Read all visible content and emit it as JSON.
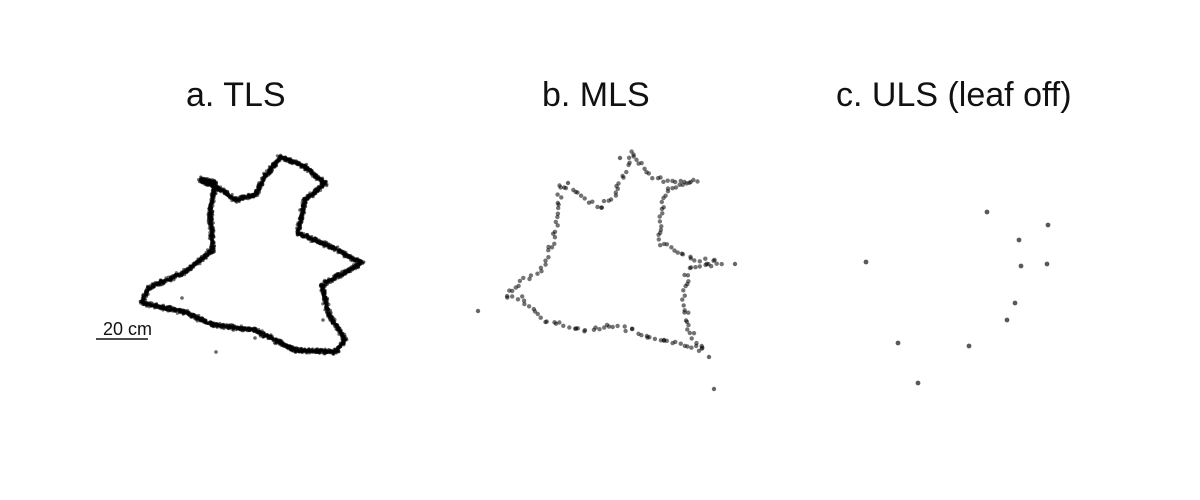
{
  "panels": [
    {
      "id": "a",
      "title": "a. TLS"
    },
    {
      "id": "b",
      "title": "b. MLS"
    },
    {
      "id": "c",
      "title": "c. ULS (leaf off)"
    }
  ],
  "scale_bar": {
    "label": "20 cm"
  },
  "colors": {
    "point": "#000000",
    "text": "#111111",
    "background": "#ffffff"
  }
}
